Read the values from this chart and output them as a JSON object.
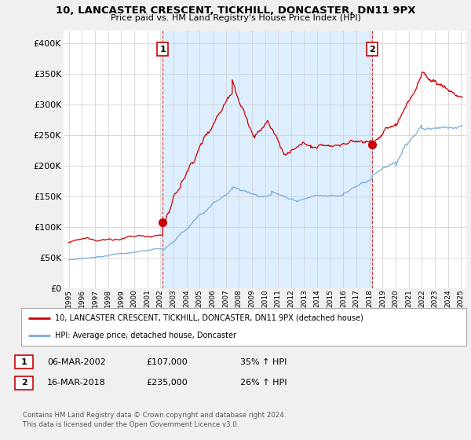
{
  "title": "10, LANCASTER CRESCENT, TICKHILL, DONCASTER, DN11 9PX",
  "subtitle": "Price paid vs. HM Land Registry's House Price Index (HPI)",
  "ylim": [
    0,
    420000
  ],
  "yticks": [
    0,
    50000,
    100000,
    150000,
    200000,
    250000,
    300000,
    350000,
    400000
  ],
  "ytick_labels": [
    "£0",
    "£50K",
    "£100K",
    "£150K",
    "£200K",
    "£250K",
    "£300K",
    "£350K",
    "£400K"
  ],
  "red_line_color": "#cc0000",
  "blue_line_color": "#7aabdb",
  "shade_color": "#ddeeff",
  "marker1_x": 2002.18,
  "marker1_y": 107000,
  "marker2_x": 2018.21,
  "marker2_y": 235000,
  "vline1_x": 2002.18,
  "vline2_x": 2018.21,
  "legend_red": "10, LANCASTER CRESCENT, TICKHILL, DONCASTER, DN11 9PX (detached house)",
  "legend_blue": "HPI: Average price, detached house, Doncaster",
  "table_row1": [
    "1",
    "06-MAR-2002",
    "£107,000",
    "35% ↑ HPI"
  ],
  "table_row2": [
    "2",
    "16-MAR-2018",
    "£235,000",
    "26% ↑ HPI"
  ],
  "footnote": "Contains HM Land Registry data © Crown copyright and database right 2024.\nThis data is licensed under the Open Government Licence v3.0.",
  "bg_color": "#f0f0f0",
  "plot_bg_color": "#ffffff",
  "grid_color": "#cccccc",
  "xlim_left": 1994.6,
  "xlim_right": 2025.4
}
